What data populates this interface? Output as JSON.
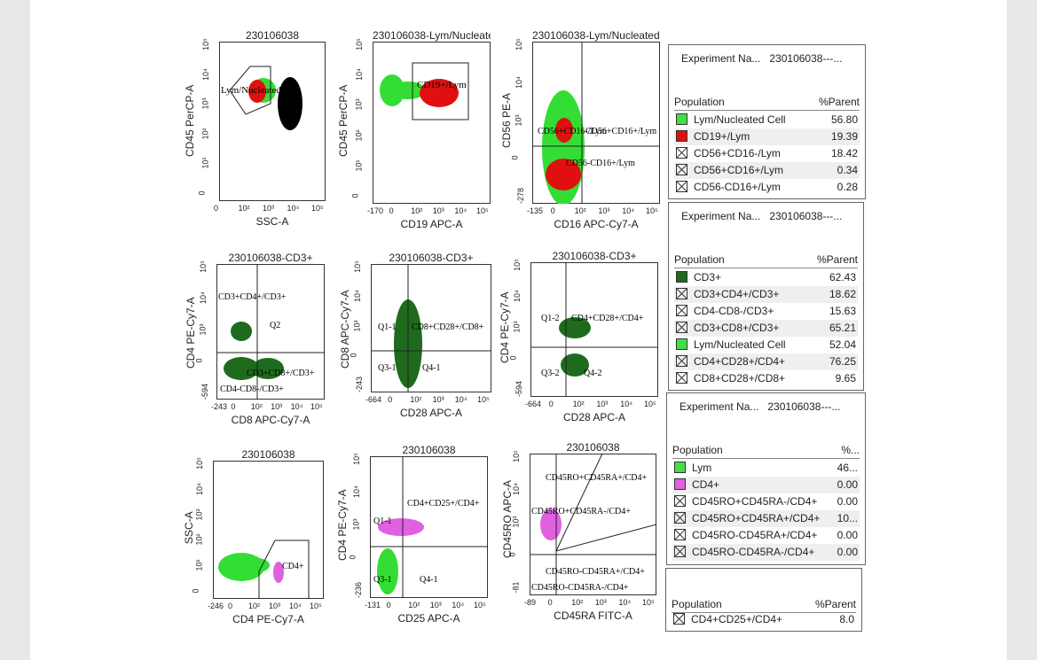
{
  "plots": [
    {
      "id": "p1",
      "title": "230106038",
      "xlabel": "SSC-A",
      "ylabel": "CD45 PerCP-A",
      "xticks": [
        "0",
        "10²",
        "10³",
        "10⁴",
        "10⁵"
      ],
      "yticks": [
        "10⁵",
        "10⁴",
        "10³",
        "10²",
        "10¹",
        "0"
      ],
      "gates": [
        "Lym/Nucleated Cell"
      ]
    },
    {
      "id": "p2",
      "title": "230106038-Lym/Nucleated Cell",
      "xlabel": "CD19 APC-A",
      "ylabel": "CD45 PerCP-A",
      "xticks": [
        "-170",
        "0",
        "10²",
        "10³",
        "10⁴",
        "10⁵"
      ],
      "yticks": [
        "10⁵",
        "10⁴",
        "10³",
        "10²",
        "10¹",
        "0"
      ],
      "gates": [
        "CD19+/Lym"
      ]
    },
    {
      "id": "p3",
      "title": "230106038-Lym/Nucleated Cell",
      "xlabel": "CD16 APC-Cy7-A",
      "ylabel": "CD56 PE-A",
      "xticks": [
        "-135",
        "0",
        "10²",
        "10³",
        "10⁴",
        "10⁵"
      ],
      "yticks": [
        "10⁵",
        "10⁴",
        "10³",
        "0",
        "-278"
      ],
      "gates": [
        "CD56+CD16-/Lym",
        "CD56+CD16+/Lym",
        "CD56-CD16+/Lym"
      ]
    },
    {
      "id": "p4",
      "title": "230106038-CD3+",
      "xlabel": "CD8 APC-Cy7-A",
      "ylabel": "CD4 PE-Cy7-A",
      "xticks": [
        "-243",
        "0",
        "10²",
        "10³",
        "10⁴",
        "10⁵"
      ],
      "yticks": [
        "10⁵",
        "10⁴",
        "10³",
        "0",
        "-594"
      ],
      "gates": [
        "CD3+CD4+/CD3+",
        "Q2",
        "CD3+CD8+/CD3+",
        "CD4-CD8-/CD3+"
      ]
    },
    {
      "id": "p5",
      "title": "230106038-CD3+",
      "xlabel": "CD28 APC-A",
      "ylabel": "CD8 APC-Cy7-A",
      "xticks": [
        "-664",
        "0",
        "10²",
        "10³",
        "10⁴",
        "10⁵"
      ],
      "yticks": [
        "10⁵",
        "10⁴",
        "10³",
        "0",
        "-243"
      ],
      "gates": [
        "Q1-1",
        "CD8+CD28+/CD8+",
        "Q3-1",
        "Q4-1"
      ]
    },
    {
      "id": "p6",
      "title": "230106038-CD3+",
      "xlabel": "CD28 APC-A",
      "ylabel": "CD4 PE-Cy7-A",
      "xticks": [
        "-664",
        "0",
        "10²",
        "10³",
        "10⁴",
        "10⁵"
      ],
      "yticks": [
        "10⁵",
        "10⁴",
        "10³",
        "0",
        "-594"
      ],
      "gates": [
        "Q1-2",
        "CD4+CD28+/CD4+",
        "Q3-2",
        "Q4-2"
      ]
    },
    {
      "id": "p7",
      "title": "230106038",
      "xlabel": "CD4 PE-Cy7-A",
      "ylabel": "SSC-A",
      "xticks": [
        "-246",
        "0",
        "10²",
        "10³",
        "10⁴",
        "10⁵"
      ],
      "yticks": [
        "10⁵",
        "10⁴",
        "10³",
        "10²",
        "10¹",
        "0"
      ],
      "gates": [
        "CD4+"
      ]
    },
    {
      "id": "p8",
      "title": "230106038",
      "xlabel": "CD25 APC-A",
      "ylabel": "CD4 PE-Cy7-A",
      "xticks": [
        "-131",
        "0",
        "10²",
        "10³",
        "10⁴",
        "10⁵"
      ],
      "yticks": [
        "10⁵",
        "10⁴",
        "10³",
        "0",
        "-236"
      ],
      "gates": [
        "CD4+CD25+/CD4+",
        "Q1-1",
        "Q3-1",
        "Q4-1"
      ]
    },
    {
      "id": "p9",
      "title": "230106038",
      "xlabel": "CD45RA FITC-A",
      "ylabel": "CD45RO APC-A",
      "xticks": [
        "-89",
        "0",
        "10²",
        "10³",
        "10⁴",
        "10⁵"
      ],
      "yticks": [
        "10⁵",
        "10⁴",
        "10³",
        "0",
        "-81"
      ],
      "gates": [
        "CD45RO+CD45RA+/CD4+",
        "CD45RO+CD45RA-/CD4+",
        "CD45RO-CD45RA+/CD4+",
        "CD45RO-CD45RA-/CD4+"
      ]
    }
  ],
  "panels": [
    {
      "exp_label": "Experiment Na...",
      "exp_value": "230106038---...",
      "col_pop": "Population",
      "col_val": "%Parent",
      "rows": [
        {
          "name": "Lym/Nucleated Cell",
          "value": "56.80",
          "swatch": "#44dd44"
        },
        {
          "name": "CD19+/Lym",
          "value": "19.39",
          "swatch": "#e01010"
        },
        {
          "name": "CD56+CD16-/Lym",
          "value": "18.42",
          "swatch": "x"
        },
        {
          "name": "CD56+CD16+/Lym",
          "value": "0.34",
          "swatch": "x"
        },
        {
          "name": "CD56-CD16+/Lym",
          "value": "0.28",
          "swatch": "x"
        }
      ]
    },
    {
      "exp_label": "Experiment Na...",
      "exp_value": "230106038---...",
      "col_pop": "Population",
      "col_val": "%Parent",
      "rows": [
        {
          "name": "CD3+",
          "value": "62.43",
          "swatch": "#1e6b1e"
        },
        {
          "name": "CD3+CD4+/CD3+",
          "value": "18.62",
          "swatch": "x"
        },
        {
          "name": "CD4-CD8-/CD3+",
          "value": "15.63",
          "swatch": "x"
        },
        {
          "name": "CD3+CD8+/CD3+",
          "value": "65.21",
          "swatch": "x"
        },
        {
          "name": "Lym/Nucleated Cell",
          "value": "52.04",
          "swatch": "#44dd44"
        },
        {
          "name": "CD4+CD28+/CD4+",
          "value": "76.25",
          "swatch": "x"
        },
        {
          "name": "CD8+CD28+/CD8+",
          "value": "9.65",
          "swatch": "x"
        }
      ]
    },
    {
      "exp_label": "Experiment Na...",
      "exp_value": "230106038---...",
      "col_pop": "Population",
      "col_val": "%...",
      "rows": [
        {
          "name": "Lym",
          "value": "46...",
          "swatch": "#44dd44"
        },
        {
          "name": "CD4+",
          "value": "0.00",
          "swatch": "#e060e0"
        },
        {
          "name": "CD45RO+CD45RA-/CD4+",
          "value": "0.00",
          "swatch": "x"
        },
        {
          "name": "CD45RO+CD45RA+/CD4+",
          "value": "10...",
          "swatch": "x"
        },
        {
          "name": "CD45RO-CD45RA+/CD4+",
          "value": "0.00",
          "swatch": "x"
        },
        {
          "name": "CD45RO-CD45RA-/CD4+",
          "value": "0.00",
          "swatch": "x"
        }
      ]
    },
    {
      "col_pop": "Population",
      "col_val": "%Parent",
      "rows": [
        {
          "name": "CD4+CD25+/CD4+",
          "value": "8.0",
          "swatch": "x"
        }
      ]
    }
  ]
}
